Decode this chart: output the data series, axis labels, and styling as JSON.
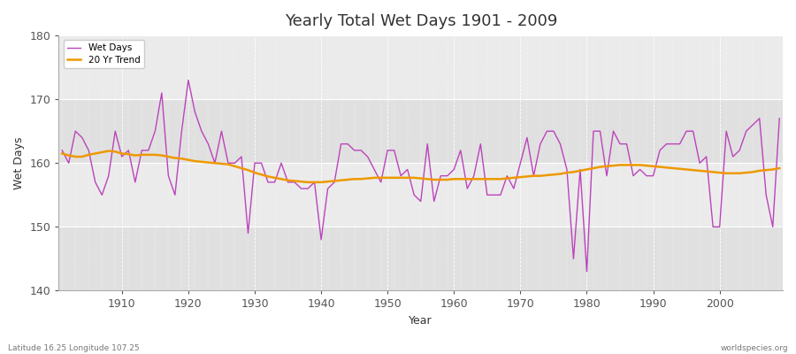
{
  "title": "Yearly Total Wet Days 1901 - 2009",
  "xlabel": "Year",
  "ylabel": "Wet Days",
  "lat_label": "Latitude 16.25 Longitude 107.25",
  "source_label": "worldspecies.org",
  "legend_wet": "Wet Days",
  "legend_trend": "20 Yr Trend",
  "wet_color": "#bb44bb",
  "trend_color": "#ee9900",
  "bg_color_light": "#e8e8e8",
  "bg_color_dark": "#d8d8d8",
  "ylim": [
    140,
    180
  ],
  "xlim": [
    1901,
    2009
  ],
  "yticks": [
    140,
    150,
    160,
    170,
    180
  ],
  "xticks": [
    1910,
    1920,
    1930,
    1940,
    1950,
    1960,
    1970,
    1980,
    1990,
    2000
  ],
  "years": [
    1901,
    1902,
    1903,
    1904,
    1905,
    1906,
    1907,
    1908,
    1909,
    1910,
    1911,
    1912,
    1913,
    1914,
    1915,
    1916,
    1917,
    1918,
    1919,
    1920,
    1921,
    1922,
    1923,
    1924,
    1925,
    1926,
    1927,
    1928,
    1929,
    1930,
    1931,
    1932,
    1933,
    1934,
    1935,
    1936,
    1937,
    1938,
    1939,
    1940,
    1941,
    1942,
    1943,
    1944,
    1945,
    1946,
    1947,
    1948,
    1949,
    1950,
    1951,
    1952,
    1953,
    1954,
    1955,
    1956,
    1957,
    1958,
    1959,
    1960,
    1961,
    1962,
    1963,
    1964,
    1965,
    1966,
    1967,
    1968,
    1969,
    1970,
    1971,
    1972,
    1973,
    1974,
    1975,
    1976,
    1977,
    1978,
    1979,
    1980,
    1981,
    1982,
    1983,
    1984,
    1985,
    1986,
    1987,
    1988,
    1989,
    1990,
    1991,
    1992,
    1993,
    1994,
    1995,
    1996,
    1997,
    1998,
    1999,
    2000,
    2001,
    2002,
    2003,
    2004,
    2005,
    2006,
    2007,
    2008,
    2009
  ],
  "wet_days": [
    162,
    160,
    165,
    164,
    162,
    157,
    155,
    158,
    165,
    161,
    162,
    157,
    162,
    162,
    165,
    171,
    158,
    155,
    165,
    173,
    168,
    165,
    163,
    160,
    165,
    160,
    160,
    161,
    149,
    160,
    160,
    157,
    157,
    160,
    157,
    157,
    156,
    156,
    157,
    148,
    156,
    157,
    163,
    163,
    162,
    162,
    161,
    159,
    157,
    162,
    162,
    158,
    159,
    155,
    154,
    163,
    154,
    158,
    158,
    159,
    162,
    156,
    158,
    163,
    155,
    155,
    155,
    158,
    156,
    160,
    164,
    158,
    163,
    165,
    165,
    163,
    159,
    145,
    159,
    143,
    165,
    165,
    158,
    165,
    163,
    163,
    158,
    159,
    158,
    158,
    162,
    163,
    163,
    163,
    165,
    165,
    160,
    161,
    150,
    150,
    165,
    161,
    162,
    165,
    166,
    167,
    155,
    150,
    167
  ],
  "trend_days": [
    161.5,
    161.2,
    161.0,
    161.0,
    161.3,
    161.5,
    161.7,
    161.9,
    161.8,
    161.5,
    161.4,
    161.2,
    161.3,
    161.3,
    161.3,
    161.2,
    161.0,
    160.8,
    160.7,
    160.5,
    160.3,
    160.2,
    160.1,
    160.0,
    159.9,
    159.8,
    159.5,
    159.2,
    158.9,
    158.5,
    158.2,
    157.9,
    157.7,
    157.5,
    157.3,
    157.2,
    157.1,
    157.0,
    157.0,
    157.0,
    157.1,
    157.2,
    157.3,
    157.4,
    157.5,
    157.5,
    157.6,
    157.7,
    157.7,
    157.7,
    157.7,
    157.7,
    157.7,
    157.7,
    157.6,
    157.5,
    157.4,
    157.4,
    157.4,
    157.5,
    157.5,
    157.5,
    157.5,
    157.5,
    157.5,
    157.5,
    157.5,
    157.6,
    157.7,
    157.8,
    157.9,
    158.0,
    158.0,
    158.1,
    158.2,
    158.3,
    158.5,
    158.6,
    158.8,
    159.0,
    159.2,
    159.4,
    159.5,
    159.6,
    159.7,
    159.7,
    159.7,
    159.7,
    159.6,
    159.5,
    159.4,
    159.3,
    159.2,
    159.1,
    159.0,
    158.9,
    158.8,
    158.7,
    158.6,
    158.5,
    158.4,
    158.4,
    158.4,
    158.5,
    158.6,
    158.8,
    158.9,
    159.0,
    159.2
  ]
}
